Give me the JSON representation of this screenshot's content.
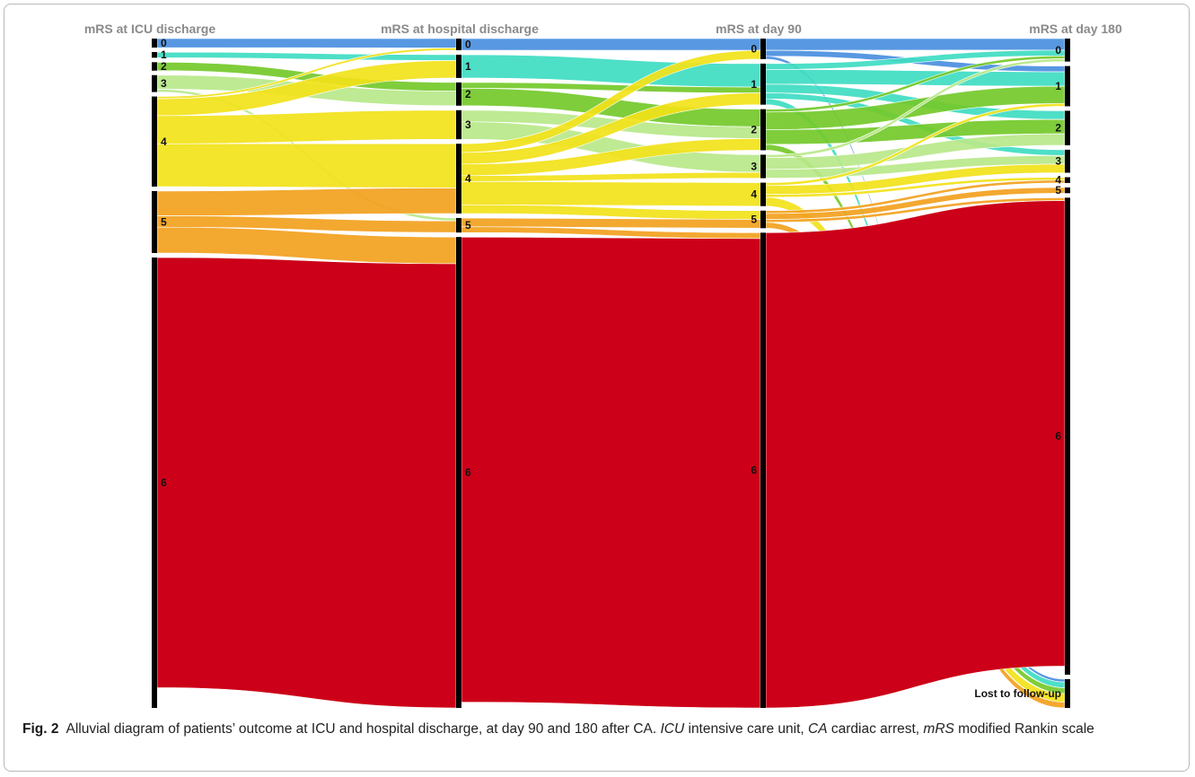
{
  "chart_data": {
    "type": "alluvial",
    "stages": [
      "mRS at ICU discharge",
      "mRS at hospital discharge",
      "mRS at day 90",
      "mRS at day 180"
    ],
    "categories": [
      "0",
      "1",
      "2",
      "3",
      "4",
      "5",
      "6",
      "Lost to follow-up"
    ],
    "colors": {
      "0": "#4a8fe0",
      "1": "#3fdcc2",
      "2": "#74c92a",
      "3": "#b8e88a",
      "4": "#f2e21a",
      "5": "#f2a11e",
      "6": "#cc0018"
    },
    "nodes": [
      [
        {
          "label": "0",
          "value": 1.6
        },
        {
          "label": "1",
          "value": 1
        },
        {
          "label": "2",
          "value": 1.5
        },
        {
          "label": "3",
          "value": 3
        },
        {
          "label": "4",
          "value": 16
        },
        {
          "label": "5",
          "value": 11
        },
        {
          "label": "6",
          "value": 80
        }
      ],
      [
        {
          "label": "0",
          "value": 2
        },
        {
          "label": "1",
          "value": 4
        },
        {
          "label": "2",
          "value": 4
        },
        {
          "label": "3",
          "value": 5
        },
        {
          "label": "4",
          "value": 12
        },
        {
          "label": "5",
          "value": 2.5
        },
        {
          "label": "6",
          "value": 81
        }
      ],
      [
        {
          "label": "0",
          "value": 3.5
        },
        {
          "label": "1",
          "value": 7
        },
        {
          "label": "2",
          "value": 7
        },
        {
          "label": "3",
          "value": 4
        },
        {
          "label": "4",
          "value": 4
        },
        {
          "label": "5",
          "value": 3
        },
        {
          "label": "6",
          "value": 81
        }
      ],
      [
        {
          "label": "0",
          "value": 4
        },
        {
          "label": "1",
          "value": 7
        },
        {
          "label": "2",
          "value": 6
        },
        {
          "label": "3",
          "value": 4
        },
        {
          "label": "4",
          "value": 1
        },
        {
          "label": "5",
          "value": 1
        },
        {
          "label": "6",
          "value": 83
        },
        {
          "label": "Lost to follow-up",
          "value": 5
        }
      ]
    ],
    "flows": [
      [
        {
          "from": "0",
          "to": "0",
          "value": 1.6,
          "color": "0"
        },
        {
          "from": "1",
          "to": "1",
          "value": 1,
          "color": "1"
        },
        {
          "from": "2",
          "to": "2",
          "value": 1.5,
          "color": "2"
        },
        {
          "from": "3",
          "to": "2",
          "value": 2.5,
          "color": "3"
        },
        {
          "from": "3",
          "to": "5",
          "value": 0.5,
          "color": "3"
        },
        {
          "from": "4",
          "to": "0",
          "value": 0.4,
          "color": "4"
        },
        {
          "from": "4",
          "to": "1",
          "value": 3,
          "color": "4"
        },
        {
          "from": "4",
          "to": "3",
          "value": 5,
          "color": "4"
        },
        {
          "from": "4",
          "to": "4",
          "value": 7.6,
          "color": "4"
        },
        {
          "from": "5",
          "to": "4",
          "value": 4.4,
          "color": "5"
        },
        {
          "from": "5",
          "to": "5",
          "value": 2,
          "color": "5"
        },
        {
          "from": "5",
          "to": "6",
          "value": 4.6,
          "color": "5"
        },
        {
          "from": "6",
          "to": "6",
          "value": 76.4,
          "color": "6"
        }
      ],
      [
        {
          "from": "0",
          "to": "0",
          "value": 2,
          "color": "0"
        },
        {
          "from": "1",
          "to": "1",
          "value": 4,
          "color": "1"
        },
        {
          "from": "2",
          "to": "1",
          "value": 1,
          "color": "2"
        },
        {
          "from": "2",
          "to": "2",
          "value": 3,
          "color": "2"
        },
        {
          "from": "3",
          "to": "2",
          "value": 2,
          "color": "3"
        },
        {
          "from": "3",
          "to": "3",
          "value": 3,
          "color": "3"
        },
        {
          "from": "4",
          "to": "0",
          "value": 1.5,
          "color": "4"
        },
        {
          "from": "4",
          "to": "1",
          "value": 2,
          "color": "4"
        },
        {
          "from": "4",
          "to": "2",
          "value": 2,
          "color": "4"
        },
        {
          "from": "4",
          "to": "3",
          "value": 1,
          "color": "4"
        },
        {
          "from": "4",
          "to": "4",
          "value": 4,
          "color": "4"
        },
        {
          "from": "4",
          "to": "5",
          "value": 1.5,
          "color": "4"
        },
        {
          "from": "5",
          "to": "5",
          "value": 1.5,
          "color": "5"
        },
        {
          "from": "5",
          "to": "6",
          "value": 1,
          "color": "5"
        },
        {
          "from": "6",
          "to": "6",
          "value": 80,
          "color": "6"
        }
      ],
      [
        {
          "from": "0",
          "to": "0",
          "value": 2,
          "color": "0"
        },
        {
          "from": "0",
          "to": "1",
          "value": 1,
          "color": "0"
        },
        {
          "from": "0",
          "to": "Lost to follow-up",
          "value": 0.5,
          "color": "0"
        },
        {
          "from": "1",
          "to": "0",
          "value": 1,
          "color": "1"
        },
        {
          "from": "1",
          "to": "1",
          "value": 2.5,
          "color": "1"
        },
        {
          "from": "1",
          "to": "2",
          "value": 1.5,
          "color": "1"
        },
        {
          "from": "1",
          "to": "3",
          "value": 1,
          "color": "1"
        },
        {
          "from": "1",
          "to": "Lost to follow-up",
          "value": 1,
          "color": "1"
        },
        {
          "from": "2",
          "to": "0",
          "value": 0.5,
          "color": "2"
        },
        {
          "from": "2",
          "to": "1",
          "value": 3,
          "color": "2"
        },
        {
          "from": "2",
          "to": "2",
          "value": 2.5,
          "color": "2"
        },
        {
          "from": "2",
          "to": "Lost to follow-up",
          "value": 1,
          "color": "2"
        },
        {
          "from": "3",
          "to": "0",
          "value": 0.5,
          "color": "3"
        },
        {
          "from": "3",
          "to": "2",
          "value": 2,
          "color": "3"
        },
        {
          "from": "3",
          "to": "3",
          "value": 1.5,
          "color": "3"
        },
        {
          "from": "4",
          "to": "1",
          "value": 0.5,
          "color": "4"
        },
        {
          "from": "4",
          "to": "3",
          "value": 1.5,
          "color": "4"
        },
        {
          "from": "4",
          "to": "4",
          "value": 0.5,
          "color": "4"
        },
        {
          "from": "4",
          "to": "Lost to follow-up",
          "value": 1.5,
          "color": "4"
        },
        {
          "from": "5",
          "to": "4",
          "value": 0.5,
          "color": "5"
        },
        {
          "from": "5",
          "to": "5",
          "value": 1,
          "color": "5"
        },
        {
          "from": "5",
          "to": "6",
          "value": 0.5,
          "color": "5"
        },
        {
          "from": "5",
          "to": "Lost to follow-up",
          "value": 1,
          "color": "5"
        },
        {
          "from": "6",
          "to": "6",
          "value": 81,
          "color": "6"
        }
      ]
    ]
  },
  "caption": {
    "fig_label": "Fig. 2",
    "text_1": "Alluvial diagram of patients’ outcome at ICU and hospital discharge, at day 90 and 180 after CA. ",
    "abbr_1": "ICU",
    "text_2": " intensive care unit, ",
    "abbr_2": "CA",
    "text_3": " cardiac arrest, ",
    "abbr_3": "mRS",
    "text_4": " modified Rankin scale"
  }
}
